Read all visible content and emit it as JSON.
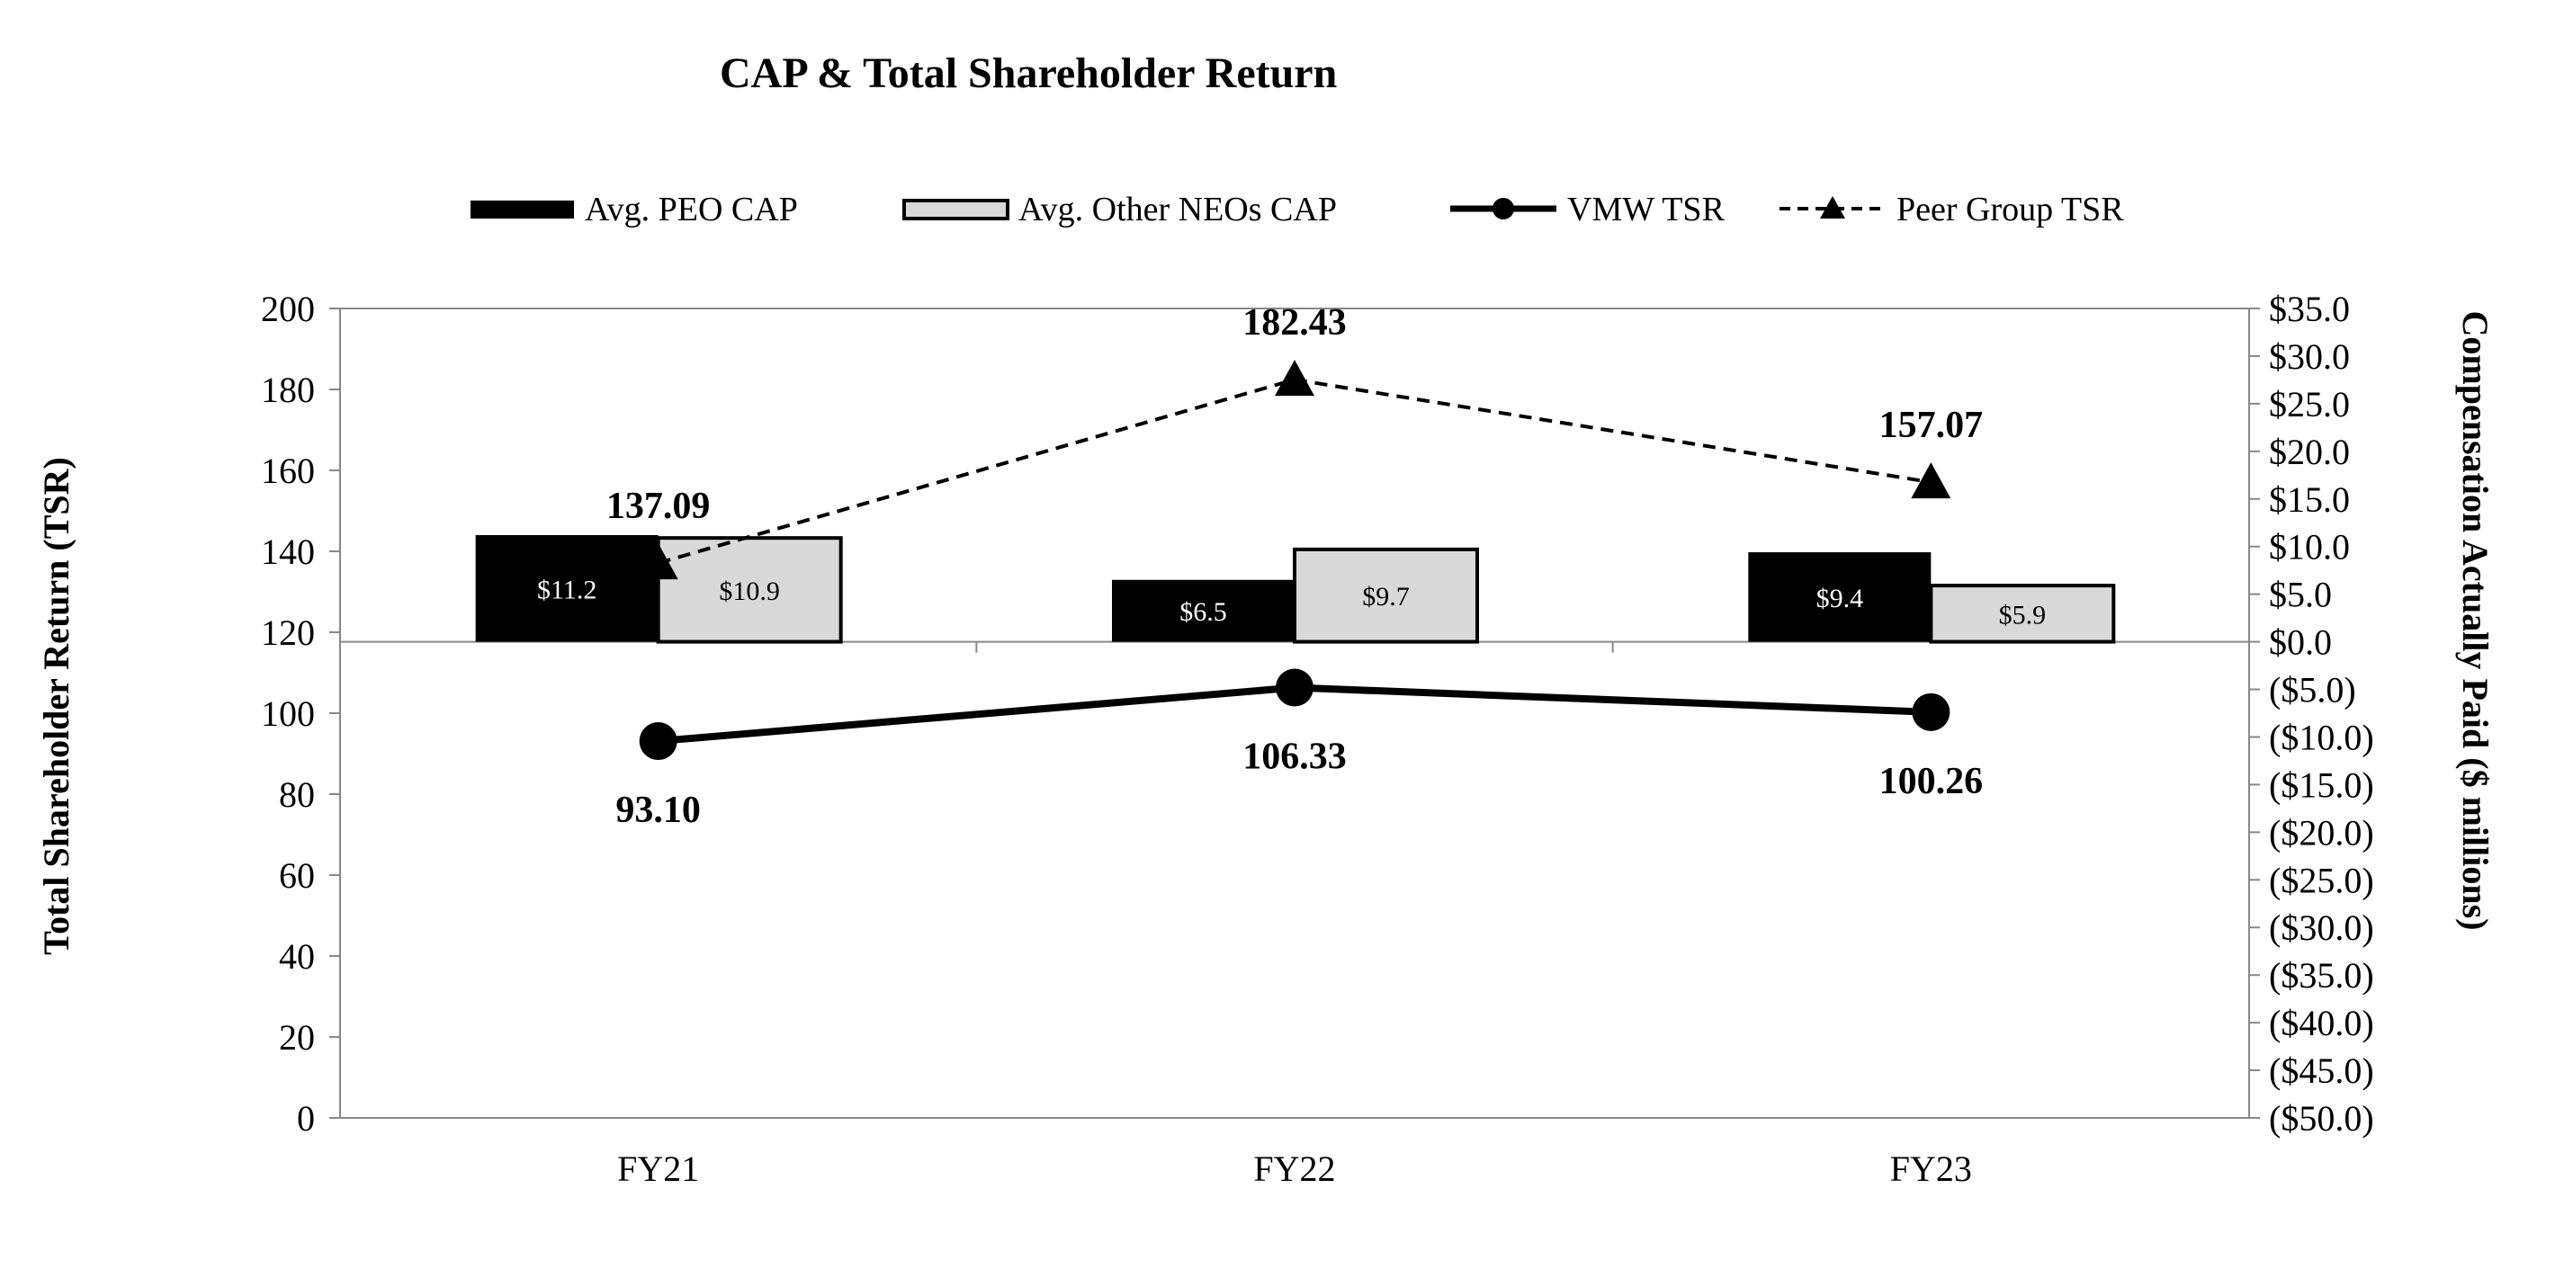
{
  "chart_data": {
    "type": "bar+line",
    "title": "CAP & Total Shareholder Return",
    "categories": [
      "FY21",
      "FY22",
      "FY23"
    ],
    "left_axis": {
      "label": "Total Shareholder Return (TSR)",
      "range": [
        0,
        200
      ],
      "ticks": [
        "0",
        "20",
        "40",
        "60",
        "80",
        "100",
        "120",
        "140",
        "160",
        "180",
        "200"
      ]
    },
    "right_axis": {
      "label": "Compensation Actually Paid ($ millions)",
      "range": [
        -50,
        35
      ],
      "ticks": [
        "($50.0)",
        "($45.0)",
        "($40.0)",
        "($35.0)",
        "($30.0)",
        "($25.0)",
        "($20.0)",
        "($15.0)",
        "($10.0)",
        "($5.0)",
        "$0.0",
        "$5.0",
        "$10.0",
        "$15.0",
        "$20.0",
        "$25.0",
        "$30.0",
        "$35.0"
      ]
    },
    "bar_series": [
      {
        "name": "Avg. PEO CAP",
        "color": "#000000",
        "values": [
          11.2,
          6.5,
          9.4
        ],
        "labels": [
          "$11.2",
          "$6.5",
          "$9.4"
        ],
        "label_color": "#ffffff"
      },
      {
        "name": "Avg. Other NEOs CAP",
        "color": "#d9d9d9",
        "values": [
          10.9,
          9.7,
          5.9
        ],
        "labels": [
          "$10.9",
          "$9.7",
          "$5.9"
        ],
        "label_color": "#000000"
      }
    ],
    "line_series": [
      {
        "name": "VMW TSR",
        "style": "solid",
        "marker": "circle",
        "values": [
          93.1,
          106.33,
          100.26
        ],
        "labels": [
          "93.10",
          "106.33",
          "100.26"
        ]
      },
      {
        "name": "Peer Group TSR",
        "style": "dashed",
        "marker": "triangle",
        "values": [
          137.09,
          182.43,
          157.07
        ],
        "labels": [
          "137.09",
          "182.43",
          "157.07"
        ]
      }
    ],
    "legend": [
      "Avg. PEO CAP",
      "Avg. Other NEOs CAP",
      "VMW TSR",
      "Peer Group TSR"
    ],
    "legend_position": "top",
    "grid": false
  }
}
